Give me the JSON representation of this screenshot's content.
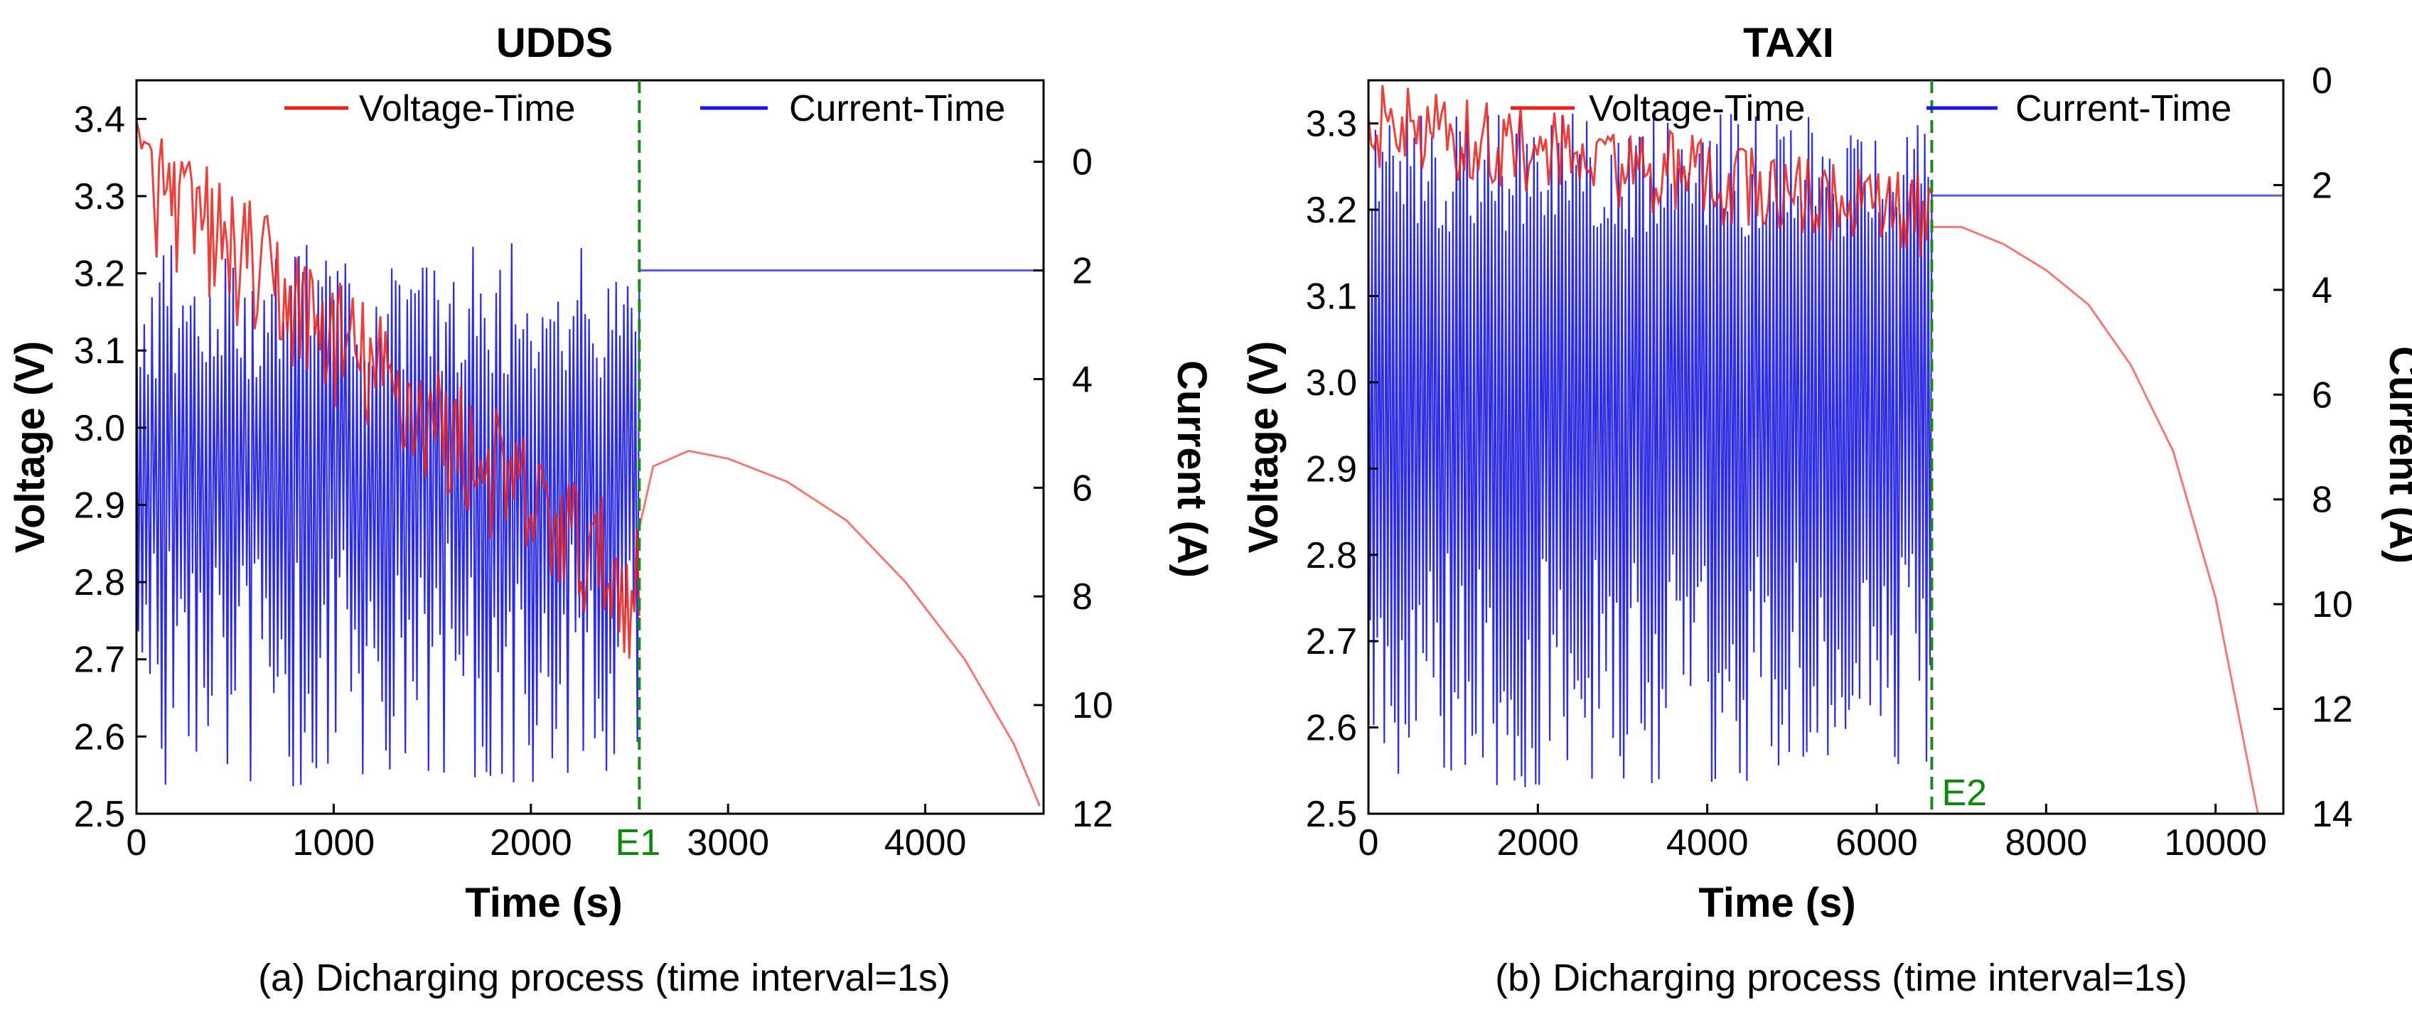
{
  "figure": {
    "colors": {
      "voltage": "#e8201a",
      "voltage_light": "#f27a76",
      "current": "#1515e6",
      "marker": "#1a8a1a"
    }
  },
  "chart_data": [
    {
      "id": "udds",
      "type": "line",
      "title": "UDDS",
      "caption": "(a) Dicharging process (time interval=1s)",
      "xlabel": "Time (s)",
      "ylabel": "Voltage (V)",
      "y2label": "Current (A)",
      "xlim": [
        0,
        4600
      ],
      "ylim": [
        2.5,
        3.45
      ],
      "y2lim": [
        -1.5,
        12
      ],
      "x_ticks": [
        "0",
        "1000",
        "2000",
        "3000",
        "4000"
      ],
      "x_tick_values": [
        0,
        1000,
        2000,
        3000,
        4000
      ],
      "y_ticks": [
        "2.5",
        "2.6",
        "2.7",
        "2.8",
        "2.9",
        "3.0",
        "3.1",
        "3.2",
        "3.3",
        "3.4"
      ],
      "y_tick_values": [
        2.5,
        2.6,
        2.7,
        2.8,
        2.9,
        3.0,
        3.1,
        3.2,
        3.3,
        3.4
      ],
      "y2_ticks": [
        "0",
        "2",
        "4",
        "6",
        "8",
        "10",
        "12"
      ],
      "y2_tick_values": [
        0,
        2,
        4,
        6,
        8,
        10,
        12
      ],
      "legend": [
        "Voltage-Time",
        "Current-Time"
      ],
      "marker": {
        "label": "E1",
        "x": 2550
      },
      "dynamic": {
        "duration": 2550,
        "voltage_start": 3.33,
        "voltage_end": 2.78,
        "voltage_noise": 0.09,
        "current_low": 1.5,
        "current_high": 11.5,
        "current_segments": 260
      },
      "rest_current": 2.0,
      "discharge_voltage": [
        [
          2550,
          2.87
        ],
        [
          2620,
          2.95
        ],
        [
          2800,
          2.97
        ],
        [
          3000,
          2.96
        ],
        [
          3300,
          2.93
        ],
        [
          3600,
          2.88
        ],
        [
          3900,
          2.8
        ],
        [
          4200,
          2.7
        ],
        [
          4450,
          2.59
        ],
        [
          4580,
          2.51
        ]
      ]
    },
    {
      "id": "taxi",
      "type": "line",
      "title": "TAXI",
      "caption": "(b) Dicharging process (time interval=1s)",
      "xlabel": "Time (s)",
      "ylabel": "Voltage (V)",
      "y2label": "Current (A)",
      "xlim": [
        0,
        10800
      ],
      "ylim": [
        2.5,
        3.35
      ],
      "y2lim": [
        0,
        14
      ],
      "x_ticks": [
        "0",
        "2000",
        "4000",
        "6000",
        "8000",
        "10000"
      ],
      "x_tick_values": [
        0,
        2000,
        4000,
        6000,
        8000,
        10000
      ],
      "y_ticks": [
        "2.5",
        "2.6",
        "2.7",
        "2.8",
        "2.9",
        "3.0",
        "3.1",
        "3.2",
        "3.3"
      ],
      "y_tick_values": [
        2.5,
        2.6,
        2.7,
        2.8,
        2.9,
        3.0,
        3.1,
        3.2,
        3.3
      ],
      "y2_ticks": [
        "0",
        "2",
        "4",
        "6",
        "8",
        "10",
        "12",
        "14"
      ],
      "y2_tick_values": [
        0,
        2,
        4,
        6,
        8,
        10,
        12,
        14
      ],
      "legend": [
        "Voltage-Time",
        "Current-Time"
      ],
      "marker": {
        "label": "E2",
        "x": 6650
      },
      "dynamic": {
        "duration": 6650,
        "voltage_start": 3.3,
        "voltage_end": 3.19,
        "voltage_noise": 0.05,
        "current_low": 0.5,
        "current_high": 13.5,
        "current_segments": 320
      },
      "rest_current": 2.2,
      "discharge_voltage": [
        [
          6650,
          3.18
        ],
        [
          7000,
          3.18
        ],
        [
          7500,
          3.16
        ],
        [
          8000,
          3.13
        ],
        [
          8500,
          3.09
        ],
        [
          9000,
          3.02
        ],
        [
          9500,
          2.92
        ],
        [
          10000,
          2.75
        ],
        [
          10300,
          2.6
        ],
        [
          10500,
          2.5
        ]
      ]
    }
  ]
}
